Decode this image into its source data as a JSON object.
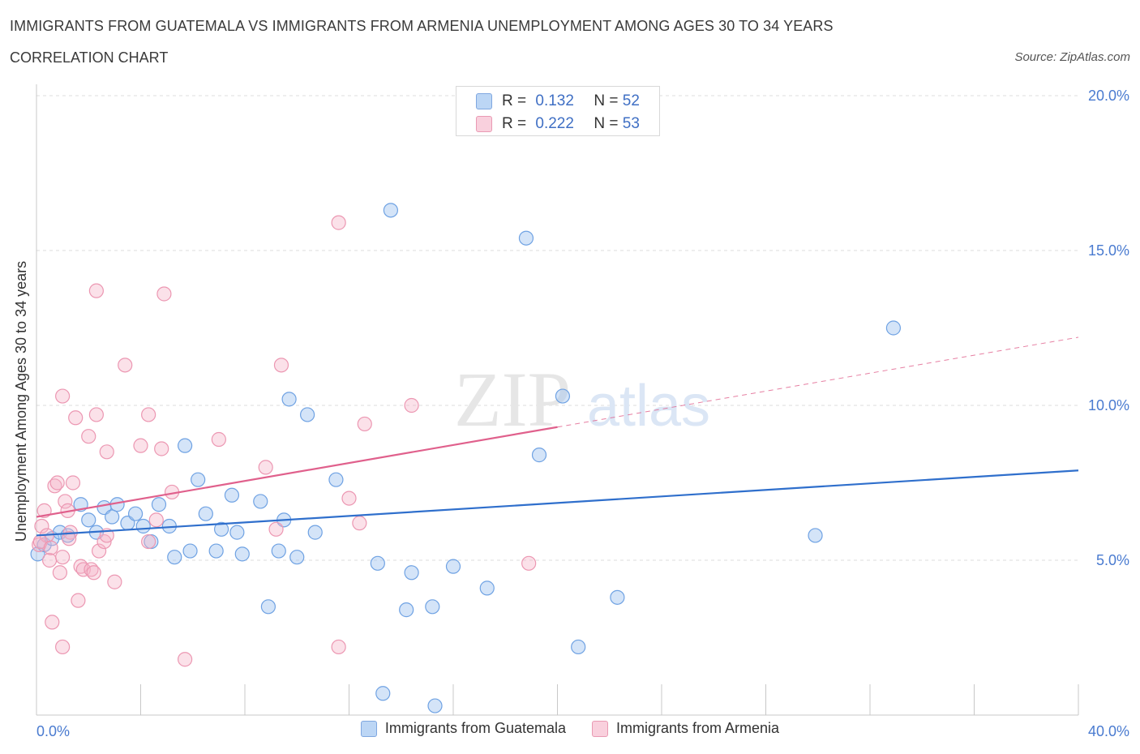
{
  "header": {
    "title": "IMMIGRANTS FROM GUATEMALA VS IMMIGRANTS FROM ARMENIA UNEMPLOYMENT AMONG AGES 30 TO 34 YEARS",
    "subtitle": "CORRELATION CHART",
    "source": "Source: ZipAtlas.com"
  },
  "watermark": {
    "zip": "ZIP",
    "atlas": "atlas"
  },
  "stats": [
    {
      "r_label": "R = ",
      "r_value": "0.132",
      "n_label": "N = ",
      "n_value": "52",
      "color": "#a9c8f0",
      "border": "#7fa7e0"
    },
    {
      "r_label": "R = ",
      "r_value": "0.222",
      "n_label": "N = ",
      "n_value": "53",
      "color": "#f7c3d3",
      "border": "#e99ab3"
    }
  ],
  "legend": [
    {
      "label": "Immigrants from Guatemala",
      "color": "#a9c8f0",
      "border": "#7fa7e0"
    },
    {
      "label": "Immigrants from Armenia",
      "color": "#f7c3d3",
      "border": "#e99ab3"
    }
  ],
  "chart_data": {
    "type": "scatter",
    "title": "IMMIGRANTS FROM GUATEMALA VS IMMIGRANTS FROM ARMENIA UNEMPLOYMENT AMONG AGES 30 TO 34 YEARS",
    "ylabel": "Unemployment Among Ages 30 to 34 years",
    "xlabel": "",
    "xlim": [
      0,
      40
    ],
    "ylim": [
      0,
      20
    ],
    "x_tick_labels": [
      "0.0%",
      "40.0%"
    ],
    "y_tick_values": [
      5,
      10,
      15,
      20
    ],
    "y_tick_labels": [
      "5.0%",
      "10.0%",
      "15.0%",
      "20.0%"
    ],
    "grid": true,
    "legend_position": "bottom",
    "series": [
      {
        "name": "Immigrants from Guatemala",
        "color": "#6fa2e3",
        "trend": {
          "x": [
            0,
            40
          ],
          "y": [
            5.8,
            7.9
          ],
          "style": "solid",
          "color": "#2f6fcc"
        },
        "points": [
          {
            "x": 0.05,
            "y": 5.2
          },
          {
            "x": 0.3,
            "y": 5.5
          },
          {
            "x": 0.6,
            "y": 5.7
          },
          {
            "x": 0.9,
            "y": 5.9
          },
          {
            "x": 1.2,
            "y": 5.8
          },
          {
            "x": 1.7,
            "y": 6.8
          },
          {
            "x": 2.0,
            "y": 6.3
          },
          {
            "x": 2.3,
            "y": 5.9
          },
          {
            "x": 2.6,
            "y": 6.7
          },
          {
            "x": 2.9,
            "y": 6.4
          },
          {
            "x": 3.1,
            "y": 6.8
          },
          {
            "x": 3.5,
            "y": 6.2
          },
          {
            "x": 3.8,
            "y": 6.5
          },
          {
            "x": 4.1,
            "y": 6.1
          },
          {
            "x": 4.4,
            "y": 5.6
          },
          {
            "x": 4.7,
            "y": 6.8
          },
          {
            "x": 5.1,
            "y": 6.1
          },
          {
            "x": 5.3,
            "y": 5.1
          },
          {
            "x": 5.7,
            "y": 8.7
          },
          {
            "x": 5.9,
            "y": 5.3
          },
          {
            "x": 6.2,
            "y": 7.6
          },
          {
            "x": 6.5,
            "y": 6.5
          },
          {
            "x": 6.9,
            "y": 5.3
          },
          {
            "x": 7.1,
            "y": 6.0
          },
          {
            "x": 7.5,
            "y": 7.1
          },
          {
            "x": 7.7,
            "y": 5.9
          },
          {
            "x": 7.9,
            "y": 5.2
          },
          {
            "x": 8.6,
            "y": 6.9
          },
          {
            "x": 8.9,
            "y": 3.5
          },
          {
            "x": 9.3,
            "y": 5.3
          },
          {
            "x": 9.5,
            "y": 6.3
          },
          {
            "x": 9.7,
            "y": 10.2
          },
          {
            "x": 10.0,
            "y": 5.1
          },
          {
            "x": 10.4,
            "y": 9.7
          },
          {
            "x": 10.7,
            "y": 5.9
          },
          {
            "x": 11.5,
            "y": 7.6
          },
          {
            "x": 13.1,
            "y": 4.9
          },
          {
            "x": 13.3,
            "y": 0.7
          },
          {
            "x": 13.6,
            "y": 16.3
          },
          {
            "x": 14.2,
            "y": 3.4
          },
          {
            "x": 14.4,
            "y": 4.6
          },
          {
            "x": 15.2,
            "y": 3.5
          },
          {
            "x": 15.3,
            "y": 0.3
          },
          {
            "x": 16.0,
            "y": 4.8
          },
          {
            "x": 17.3,
            "y": 4.1
          },
          {
            "x": 18.8,
            "y": 15.4
          },
          {
            "x": 19.3,
            "y": 8.4
          },
          {
            "x": 20.2,
            "y": 10.3
          },
          {
            "x": 20.8,
            "y": 2.2
          },
          {
            "x": 22.3,
            "y": 3.8
          },
          {
            "x": 29.9,
            "y": 5.8
          },
          {
            "x": 32.9,
            "y": 12.5
          }
        ]
      },
      {
        "name": "Immigrants from Armenia",
        "color": "#f0a0b8",
        "trend": {
          "x": [
            0,
            20,
            40
          ],
          "y": [
            6.4,
            9.3,
            12.2
          ],
          "solid_until": 20,
          "color": "#e0608c"
        },
        "points": [
          {
            "x": 0.1,
            "y": 5.5
          },
          {
            "x": 0.2,
            "y": 6.1
          },
          {
            "x": 0.3,
            "y": 6.6
          },
          {
            "x": 0.4,
            "y": 5.8
          },
          {
            "x": 0.5,
            "y": 5.0
          },
          {
            "x": 0.6,
            "y": 3.0
          },
          {
            "x": 0.7,
            "y": 7.4
          },
          {
            "x": 0.8,
            "y": 7.5
          },
          {
            "x": 0.9,
            "y": 4.6
          },
          {
            "x": 1.0,
            "y": 5.1
          },
          {
            "x": 1.0,
            "y": 10.3
          },
          {
            "x": 1.0,
            "y": 2.2
          },
          {
            "x": 1.1,
            "y": 6.9
          },
          {
            "x": 1.2,
            "y": 6.6
          },
          {
            "x": 1.3,
            "y": 5.9
          },
          {
            "x": 1.4,
            "y": 7.5
          },
          {
            "x": 1.5,
            "y": 9.6
          },
          {
            "x": 1.6,
            "y": 3.7
          },
          {
            "x": 1.7,
            "y": 4.8
          },
          {
            "x": 1.8,
            "y": 4.7
          },
          {
            "x": 2.0,
            "y": 9.0
          },
          {
            "x": 2.1,
            "y": 4.7
          },
          {
            "x": 2.2,
            "y": 4.6
          },
          {
            "x": 2.3,
            "y": 13.7
          },
          {
            "x": 2.3,
            "y": 9.7
          },
          {
            "x": 2.4,
            "y": 5.3
          },
          {
            "x": 2.6,
            "y": 5.6
          },
          {
            "x": 2.7,
            "y": 5.8
          },
          {
            "x": 2.7,
            "y": 8.5
          },
          {
            "x": 3.0,
            "y": 4.3
          },
          {
            "x": 3.4,
            "y": 11.3
          },
          {
            "x": 4.0,
            "y": 8.7
          },
          {
            "x": 4.3,
            "y": 9.7
          },
          {
            "x": 4.3,
            "y": 5.6
          },
          {
            "x": 4.6,
            "y": 6.3
          },
          {
            "x": 4.8,
            "y": 8.6
          },
          {
            "x": 4.9,
            "y": 13.6
          },
          {
            "x": 5.2,
            "y": 7.2
          },
          {
            "x": 5.7,
            "y": 1.8
          },
          {
            "x": 7.0,
            "y": 8.9
          },
          {
            "x": 8.8,
            "y": 8.0
          },
          {
            "x": 9.2,
            "y": 6.0
          },
          {
            "x": 9.4,
            "y": 11.3
          },
          {
            "x": 11.6,
            "y": 2.2
          },
          {
            "x": 11.6,
            "y": 15.9
          },
          {
            "x": 12.0,
            "y": 7.0
          },
          {
            "x": 12.4,
            "y": 6.2
          },
          {
            "x": 12.6,
            "y": 9.4
          },
          {
            "x": 14.4,
            "y": 10.0
          },
          {
            "x": 18.9,
            "y": 4.9
          },
          {
            "x": 0.15,
            "y": 5.6
          },
          {
            "x": 0.55,
            "y": 5.4
          },
          {
            "x": 1.25,
            "y": 5.7
          }
        ]
      }
    ]
  }
}
